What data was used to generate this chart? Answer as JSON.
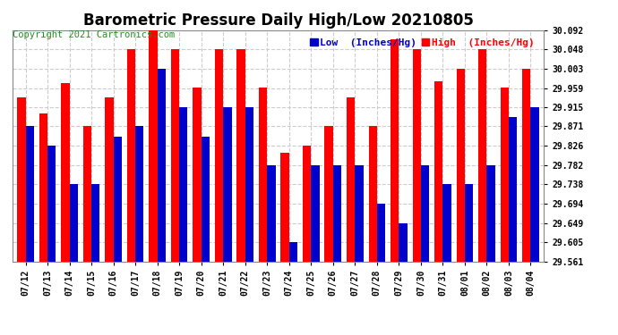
{
  "title": "Barometric Pressure Daily High/Low 20210805",
  "copyright": "Copyright 2021 Cartronics.com",
  "ylabel_low": "Low  (Inches/Hg)",
  "ylabel_high": "High  (Inches/Hg)",
  "background_color": "#ffffff",
  "plot_bg_color": "#ffffff",
  "grid_color": "#cccccc",
  "dates": [
    "07/12",
    "07/13",
    "07/14",
    "07/15",
    "07/16",
    "07/17",
    "07/18",
    "07/19",
    "07/20",
    "07/21",
    "07/22",
    "07/23",
    "07/24",
    "07/25",
    "07/26",
    "07/27",
    "07/28",
    "07/29",
    "07/30",
    "07/31",
    "08/01",
    "08/02",
    "08/03",
    "08/04"
  ],
  "high_values": [
    29.938,
    29.9,
    29.971,
    29.871,
    29.938,
    30.048,
    30.092,
    30.048,
    29.96,
    30.048,
    30.048,
    29.96,
    29.81,
    29.826,
    29.871,
    29.938,
    29.871,
    30.07,
    30.048,
    29.975,
    30.003,
    30.048,
    29.96,
    30.003
  ],
  "low_values": [
    29.871,
    29.826,
    29.738,
    29.738,
    29.848,
    29.871,
    30.003,
    29.915,
    29.848,
    29.915,
    29.915,
    29.782,
    29.605,
    29.782,
    29.782,
    29.782,
    29.694,
    29.649,
    29.782,
    29.738,
    29.738,
    29.782,
    29.893,
    29.915
  ],
  "ymin": 29.561,
  "ymax": 30.092,
  "yticks": [
    29.561,
    29.605,
    29.649,
    29.694,
    29.738,
    29.782,
    29.826,
    29.871,
    29.915,
    29.959,
    30.003,
    30.048,
    30.092
  ],
  "high_color": "#ff0000",
  "low_color": "#0000cc",
  "bar_width": 0.38,
  "title_fontsize": 12,
  "tick_fontsize": 7,
  "legend_fontsize": 8,
  "copyright_fontsize": 7.5
}
